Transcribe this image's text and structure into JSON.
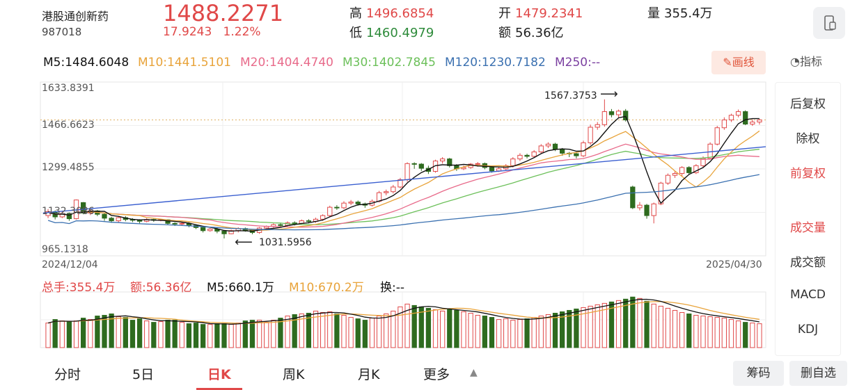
{
  "header": {
    "name": "港股通创新药",
    "code": "987018",
    "price": "1488.2271",
    "change": "17.9243",
    "change_pct": "1.22%",
    "high_label": "高",
    "high": "1496.6854",
    "low_label": "低",
    "low": "1460.4979",
    "open_label": "开",
    "open": "1479.2341",
    "amount_label": "额",
    "amount": "56.36亿",
    "volume_label": "量",
    "volume": "355.4万"
  },
  "ma": {
    "m5": "M5:1484.6048",
    "m10": "M10:1441.5101",
    "m20": "M20:1404.4740",
    "m30": "M30:1402.7845",
    "m120": "M120:1230.7182",
    "m250": "M250:--"
  },
  "draw_button": "画线",
  "indicator_label": "指标",
  "chart": {
    "y_labels": [
      "1633.8391",
      "1466.6623",
      "1299.4855",
      "1132.3086",
      "965.1318"
    ],
    "start_date": "2024/12/04",
    "end_date": "2025/04/30",
    "max_annotation": "1567.3753",
    "min_annotation": "1031.5956"
  },
  "volume": {
    "total": "总手:355.4万",
    "amount": "额:56.36亿",
    "m5": "M5:660.1万",
    "m10": "M10:670.2万",
    "turnover": "换:--"
  },
  "side_menu": {
    "items": [
      "后复权",
      "除权",
      "前复权",
      "成交量",
      "成交额",
      "MACD",
      "KDJ"
    ]
  },
  "tabs": [
    "分时",
    "5日",
    "日K",
    "周K",
    "月K",
    "更多"
  ],
  "bottom_buttons": {
    "chips": "筹码",
    "remove": "删自选"
  },
  "colors": {
    "up": "#e04848",
    "down": "#2e6b1f",
    "m5": "#111111",
    "m10": "#e8a33a",
    "m20": "#e86a8a",
    "m30": "#6cc05a",
    "m120": "#3a70b0",
    "m250": "#7a3fa0",
    "trend": "#3a5fd0"
  },
  "chart_data": {
    "type": "candlestick",
    "y_range": [
      965.1318,
      1633.8391
    ],
    "candles": [
      [
        1120,
        1135,
        1110,
        1145
      ],
      [
        1135,
        1115,
        1105,
        1140
      ],
      [
        1115,
        1128,
        1110,
        1135
      ],
      [
        1128,
        1108,
        1100,
        1132
      ],
      [
        1108,
        1180,
        1105,
        1182
      ],
      [
        1170,
        1130,
        1125,
        1172
      ],
      [
        1130,
        1138,
        1122,
        1145
      ],
      [
        1138,
        1125,
        1118,
        1142
      ],
      [
        1125,
        1110,
        1100,
        1130
      ],
      [
        1110,
        1100,
        1092,
        1115
      ],
      [
        1100,
        1112,
        1095,
        1118
      ],
      [
        1112,
        1105,
        1098,
        1118
      ],
      [
        1105,
        1102,
        1095,
        1110
      ],
      [
        1102,
        1098,
        1090,
        1106
      ],
      [
        1098,
        1105,
        1094,
        1110
      ],
      [
        1105,
        1102,
        1096,
        1108
      ],
      [
        1102,
        1104,
        1098,
        1108
      ],
      [
        1104,
        1090,
        1085,
        1106
      ],
      [
        1090,
        1088,
        1080,
        1094
      ],
      [
        1088,
        1090,
        1082,
        1095
      ],
      [
        1090,
        1082,
        1075,
        1094
      ],
      [
        1082,
        1074,
        1068,
        1086
      ],
      [
        1074,
        1062,
        1055,
        1078
      ],
      [
        1062,
        1068,
        1058,
        1072
      ],
      [
        1068,
        1060,
        1052,
        1072
      ],
      [
        1060,
        1050,
        1032,
        1062
      ],
      [
        1050,
        1062,
        1048,
        1066
      ],
      [
        1062,
        1070,
        1055,
        1075
      ],
      [
        1070,
        1064,
        1058,
        1074
      ],
      [
        1064,
        1055,
        1048,
        1068
      ],
      [
        1055,
        1072,
        1050,
        1076
      ],
      [
        1072,
        1078,
        1065,
        1082
      ],
      [
        1078,
        1085,
        1070,
        1090
      ],
      [
        1085,
        1082,
        1075,
        1092
      ],
      [
        1082,
        1092,
        1076,
        1098
      ],
      [
        1092,
        1090,
        1082,
        1098
      ],
      [
        1090,
        1100,
        1085,
        1105
      ],
      [
        1100,
        1098,
        1090,
        1106
      ],
      [
        1098,
        1106,
        1092,
        1112
      ],
      [
        1106,
        1120,
        1100,
        1125
      ],
      [
        1120,
        1152,
        1115,
        1158
      ],
      [
        1152,
        1150,
        1142,
        1160
      ],
      [
        1150,
        1168,
        1145,
        1175
      ],
      [
        1168,
        1172,
        1160,
        1180
      ],
      [
        1172,
        1165,
        1158,
        1178
      ],
      [
        1165,
        1160,
        1150,
        1170
      ],
      [
        1160,
        1175,
        1155,
        1182
      ],
      [
        1175,
        1208,
        1170,
        1215
      ],
      [
        1208,
        1212,
        1198,
        1220
      ],
      [
        1212,
        1230,
        1205,
        1238
      ],
      [
        1230,
        1258,
        1225,
        1265
      ],
      [
        1258,
        1320,
        1250,
        1325
      ],
      [
        1320,
        1318,
        1300,
        1325
      ],
      [
        1318,
        1302,
        1292,
        1322
      ],
      [
        1302,
        1290,
        1280,
        1312
      ],
      [
        1290,
        1330,
        1285,
        1335
      ],
      [
        1330,
        1338,
        1320,
        1345
      ],
      [
        1338,
        1312,
        1305,
        1342
      ],
      [
        1312,
        1300,
        1292,
        1318
      ],
      [
        1300,
        1305,
        1295,
        1312
      ],
      [
        1305,
        1318,
        1300,
        1322
      ],
      [
        1318,
        1320,
        1308,
        1326
      ],
      [
        1320,
        1305,
        1298,
        1324
      ],
      [
        1305,
        1292,
        1285,
        1310
      ],
      [
        1292,
        1300,
        1288,
        1306
      ],
      [
        1300,
        1312,
        1295,
        1318
      ],
      [
        1312,
        1338,
        1305,
        1345
      ],
      [
        1338,
        1352,
        1330,
        1360
      ],
      [
        1352,
        1348,
        1340,
        1358
      ],
      [
        1348,
        1365,
        1342,
        1372
      ],
      [
        1365,
        1388,
        1360,
        1395
      ],
      [
        1388,
        1395,
        1380,
        1402
      ],
      [
        1395,
        1375,
        1368,
        1400
      ],
      [
        1375,
        1360,
        1350,
        1380
      ],
      [
        1360,
        1358,
        1345,
        1365
      ],
      [
        1358,
        1350,
        1340,
        1362
      ],
      [
        1350,
        1400,
        1345,
        1408
      ],
      [
        1400,
        1460,
        1392,
        1470
      ],
      [
        1460,
        1470,
        1450,
        1480
      ],
      [
        1470,
        1520,
        1462,
        1567
      ],
      [
        1520,
        1508,
        1498,
        1530
      ],
      [
        1508,
        1522,
        1495,
        1528
      ],
      [
        1522,
        1488,
        1482,
        1530
      ],
      [
        1230,
        1150,
        1145,
        1235
      ],
      [
        1150,
        1160,
        1140,
        1172
      ],
      [
        1160,
        1120,
        1108,
        1165
      ],
      [
        1120,
        1165,
        1090,
        1170
      ],
      [
        1165,
        1245,
        1160,
        1250
      ],
      [
        1245,
        1275,
        1238,
        1282
      ],
      [
        1275,
        1282,
        1265,
        1290
      ],
      [
        1282,
        1305,
        1270,
        1310
      ],
      [
        1305,
        1285,
        1278,
        1310
      ],
      [
        1285,
        1312,
        1280,
        1318
      ],
      [
        1312,
        1340,
        1305,
        1348
      ],
      [
        1340,
        1395,
        1335,
        1402
      ],
      [
        1395,
        1458,
        1390,
        1465
      ],
      [
        1458,
        1488,
        1450,
        1498
      ],
      [
        1488,
        1506,
        1480,
        1512
      ],
      [
        1506,
        1520,
        1498,
        1528
      ],
      [
        1520,
        1472,
        1468,
        1525
      ],
      [
        1472,
        1480,
        1465,
        1490
      ],
      [
        1480,
        1488,
        1470,
        1492
      ]
    ],
    "volumes": [
      3.5,
      4.0,
      3.8,
      3.7,
      3.8,
      4.2,
      4.0,
      4.5,
      4.6,
      4.8,
      4.4,
      4.3,
      3.9,
      4.1,
      3.8,
      3.6,
      3.7,
      3.9,
      3.9,
      3.6,
      3.4,
      3.5,
      3.3,
      3.3,
      3.4,
      3.4,
      3.3,
      3.5,
      3.8,
      3.9,
      3.9,
      3.6,
      3.9,
      4.2,
      4.5,
      4.7,
      4.8,
      4.9,
      5.2,
      5.0,
      5.1,
      4.8,
      4.6,
      4.3,
      4.1,
      3.9,
      4.2,
      4.5,
      4.8,
      5.2,
      5.8,
      6.2,
      6.0,
      5.8,
      5.6,
      5.4,
      5.2,
      5.5,
      5.3,
      5.1,
      4.9,
      4.6,
      4.5,
      4.3,
      4.0,
      4.1,
      3.9,
      4.0,
      4.1,
      4.3,
      4.5,
      4.7,
      4.9,
      5.1,
      5.3,
      5.5,
      5.7,
      5.9,
      6.1,
      6.3,
      6.5,
      6.7,
      6.9,
      7.2,
      7.0,
      6.6,
      6.2,
      5.9,
      5.6,
      5.3,
      5.0,
      4.8,
      4.6,
      4.5,
      4.4,
      4.3,
      4.2,
      4.0,
      3.8,
      3.6,
      3.5,
      3.4
    ]
  }
}
